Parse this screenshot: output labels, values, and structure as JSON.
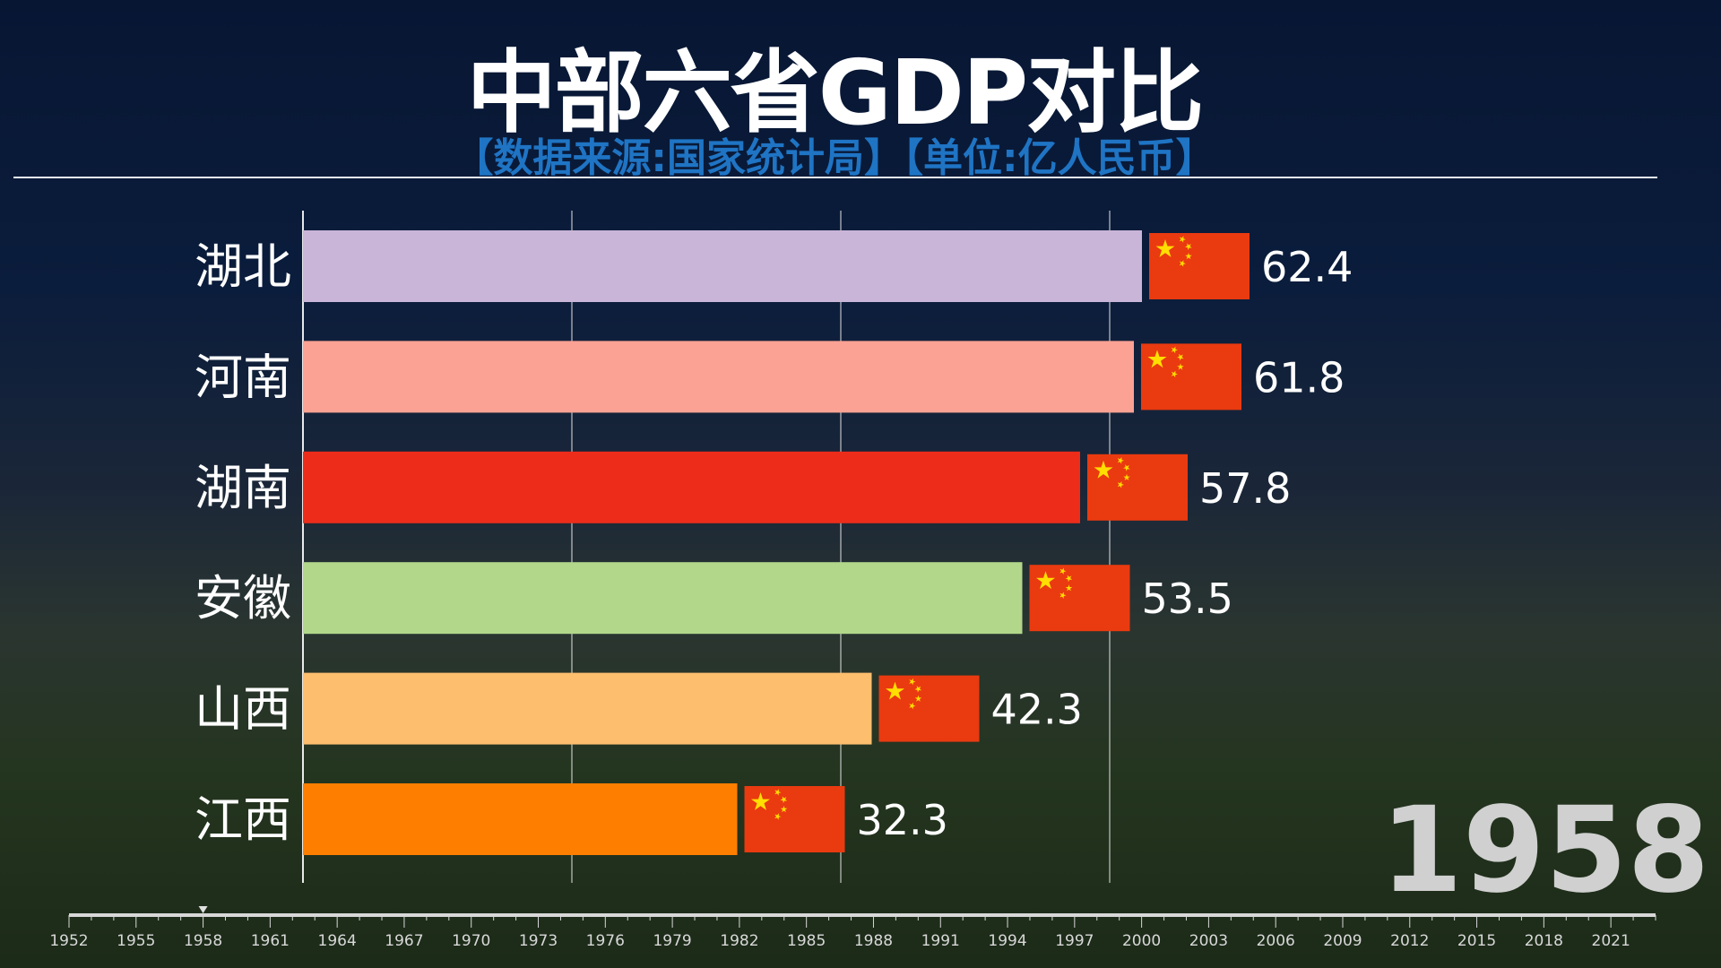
{
  "header": {
    "title": "中部六省GDP对比",
    "subtitle": "【数据来源:国家统计局】【单位:亿人民币】"
  },
  "current_year": "1958",
  "chart_data": {
    "type": "bar",
    "orientation": "horizontal",
    "categories": [
      "湖北",
      "河南",
      "湖南",
      "安徽",
      "山西",
      "江西"
    ],
    "values": [
      62.4,
      61.8,
      57.8,
      53.5,
      42.3,
      32.3
    ],
    "value_labels": [
      "62.4",
      "61.8",
      "57.8",
      "53.5",
      "42.3",
      "32.3"
    ],
    "colors": [
      "#c9b5d8",
      "#fca294",
      "#ee2c1a",
      "#b2d78a",
      "#fdbe6e",
      "#fe7f00"
    ],
    "bar_icon": "china-flag-icon",
    "xlim": [
      0,
      80
    ],
    "grid": true,
    "gridlines_at": [
      0,
      20,
      40,
      60
    ]
  },
  "timeline": {
    "start": 1952,
    "end": 2023,
    "labels": [
      "1952",
      "1955",
      "1958",
      "1961",
      "1964",
      "1967",
      "1970",
      "1973",
      "1976",
      "1979",
      "1982",
      "1985",
      "1988",
      "1991",
      "1994",
      "1997",
      "2000",
      "2003",
      "2006",
      "2009",
      "2012",
      "2015",
      "2018",
      "2021"
    ],
    "current": 1958
  }
}
